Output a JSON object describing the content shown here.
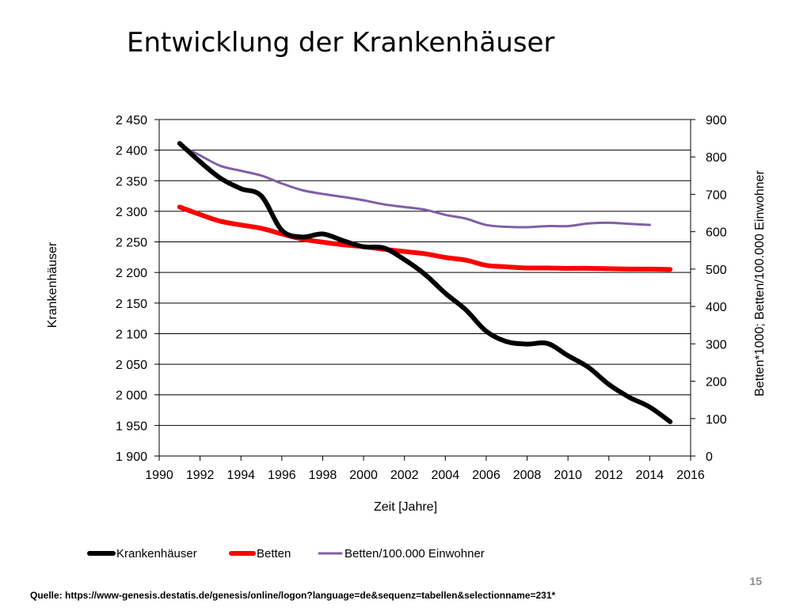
{
  "slide": {
    "title": "Entwicklung der Krankenhäuser",
    "page_number": "15",
    "source": "Quelle: https://www-genesis.destatis.de/genesis/online/logon?language=de&sequenz=tabellen&selectionname=231*"
  },
  "colors": {
    "krankenhaeuser": "#000000",
    "betten": "#ff0000",
    "betten_pro_100000": "#7f5fa6",
    "grid": "#000000"
  },
  "chart_data": {
    "type": "line",
    "title": "",
    "xlabel": "Zeit [Jahre]",
    "ylabel_left": "Krankenhäuser",
    "ylabel_right": "Betten*1000; Betten/100.000 Einwohner",
    "xlim": [
      1990,
      2016
    ],
    "x_ticks": [
      "1990",
      "1992",
      "1994",
      "1996",
      "1998",
      "2000",
      "2002",
      "2004",
      "2006",
      "2008",
      "2010",
      "2012",
      "2014",
      "2016"
    ],
    "y_left_lim": [
      1900,
      2450
    ],
    "y_left_ticks": [
      "1 900",
      "1 950",
      "2 000",
      "2 050",
      "2 100",
      "2 150",
      "2 200",
      "2 250",
      "2 300",
      "2 350",
      "2 400",
      "2 450"
    ],
    "y_right_lim": [
      0,
      900
    ],
    "y_right_ticks": [
      "0",
      "100",
      "200",
      "300",
      "400",
      "500",
      "600",
      "700",
      "800",
      "900"
    ],
    "grid": true,
    "legend_position": "bottom",
    "series": [
      {
        "name": "Krankenhäuser",
        "axis": "left",
        "x": [
          1991,
          1992,
          1993,
          1994,
          1995,
          1996,
          1997,
          1998,
          1999,
          2000,
          2001,
          2002,
          2003,
          2004,
          2005,
          2006,
          2007,
          2008,
          2009,
          2010,
          2011,
          2012,
          2013,
          2014,
          2015
        ],
        "values": [
          2411,
          2381,
          2354,
          2337,
          2325,
          2269,
          2258,
          2263,
          2252,
          2242,
          2240,
          2221,
          2197,
          2166,
          2139,
          2104,
          2087,
          2083,
          2084,
          2064,
          2045,
          2017,
          1996,
          1980,
          1956
        ]
      },
      {
        "name": "Betten",
        "axis": "right",
        "x": [
          1991,
          1992,
          1993,
          1994,
          1995,
          1996,
          1997,
          1998,
          1999,
          2000,
          2001,
          2002,
          2003,
          2004,
          2005,
          2006,
          2007,
          2008,
          2009,
          2010,
          2011,
          2012,
          2013,
          2014,
          2015
        ],
        "values": [
          666,
          646,
          628,
          618,
          609,
          594,
          580,
          572,
          565,
          560,
          553,
          547,
          541,
          531,
          524,
          510,
          506,
          503,
          503,
          502,
          502,
          501,
          500,
          500,
          499
        ]
      },
      {
        "name": "Betten/100.000 Einwohner",
        "axis": "right",
        "x": [
          1991,
          1992,
          1993,
          1994,
          1995,
          1996,
          1997,
          1998,
          1999,
          2000,
          2001,
          2002,
          2003,
          2004,
          2005,
          2006,
          2007,
          2008,
          2009,
          2010,
          2011,
          2012,
          2013,
          2014
        ],
        "values": [
          832,
          804,
          776,
          763,
          750,
          729,
          711,
          701,
          693,
          684,
          673,
          666,
          659,
          645,
          635,
          618,
          613,
          612,
          615,
          615,
          622,
          624,
          621,
          618
        ]
      }
    ]
  }
}
